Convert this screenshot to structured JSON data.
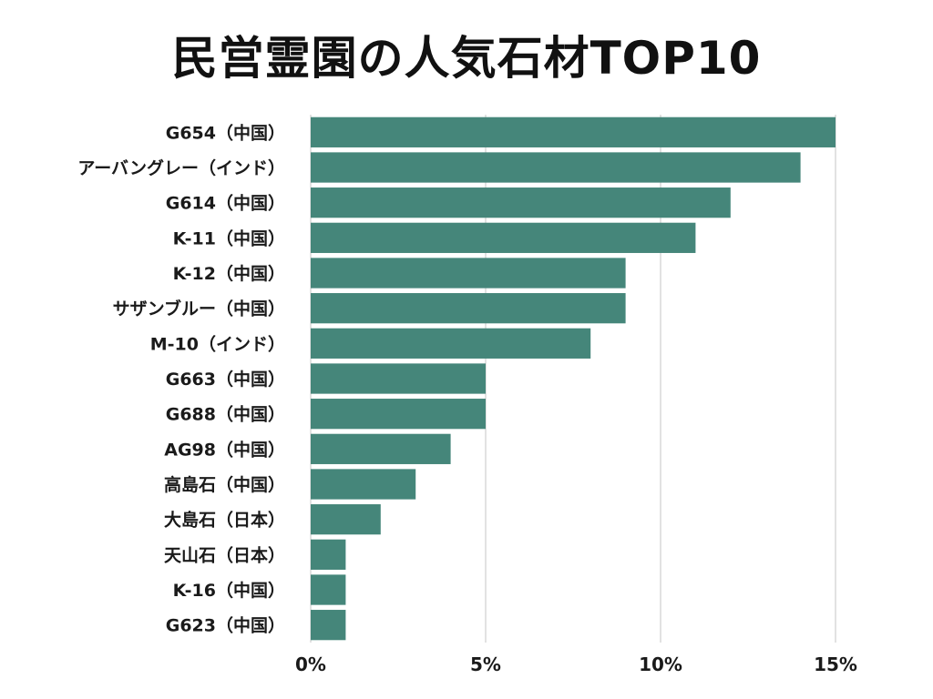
{
  "chart_data": {
    "type": "bar",
    "orientation": "horizontal",
    "title": "民営霊園の人気石材TOP10",
    "xlabel": "",
    "ylabel": "",
    "categories": [
      "G654（中国）",
      "アーバングレー（インド）",
      "G614（中国）",
      "K-11（中国）",
      "K-12（中国）",
      "サザンブルー（中国）",
      "M-10（インド）",
      "G663（中国）",
      "G688（中国）",
      "AG98（中国）",
      "高島石（中国）",
      "大島石（日本）",
      "天山石（日本）",
      "K-16（中国）",
      "G623（中国）"
    ],
    "values": [
      15,
      14,
      12,
      11,
      9,
      9,
      8,
      5,
      5,
      4,
      3,
      2,
      1,
      1,
      1
    ],
    "xlim": [
      0,
      15
    ],
    "x_ticks": [
      0,
      5,
      10,
      15
    ],
    "x_tick_labels": [
      "0%",
      "5%",
      "10%",
      "15%"
    ],
    "grid": "vertical",
    "legend": "none",
    "bar_color": "#45867a"
  }
}
